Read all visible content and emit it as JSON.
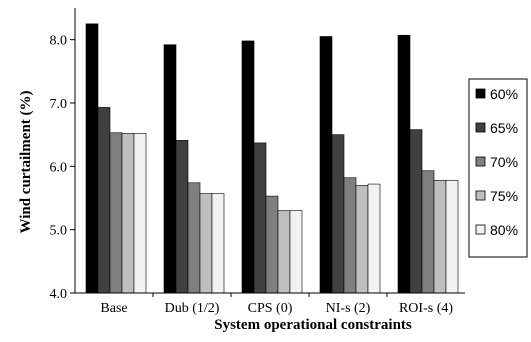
{
  "chart_data": {
    "type": "bar",
    "title": "",
    "xlabel": "System operational  constraints",
    "ylabel": "Wind curtailment (%)",
    "ylim": [
      4.0,
      8.5
    ],
    "yticks": [
      "4.0",
      "5.0",
      "6.0",
      "7.0",
      "8.0"
    ],
    "categories": [
      "Base",
      "Dub (1/2)",
      "CPS (0)",
      "NI-s (2)",
      "ROI-s (4)"
    ],
    "series": [
      {
        "name": "60%",
        "color": "#000000",
        "values": [
          8.25,
          7.92,
          7.98,
          8.05,
          8.07
        ]
      },
      {
        "name": "65%",
        "color": "#404040",
        "values": [
          6.93,
          6.41,
          6.37,
          6.5,
          6.58
        ]
      },
      {
        "name": "70%",
        "color": "#7f7f7f",
        "values": [
          6.53,
          5.74,
          5.53,
          5.82,
          5.93
        ]
      },
      {
        "name": "75%",
        "color": "#bfbfbf",
        "values": [
          6.52,
          5.57,
          5.3,
          5.7,
          5.78
        ]
      },
      {
        "name": "80%",
        "color": "#f2f2f2",
        "values": [
          6.52,
          5.57,
          5.3,
          5.72,
          5.78
        ]
      }
    ],
    "legend_position": "right",
    "grid": false
  }
}
